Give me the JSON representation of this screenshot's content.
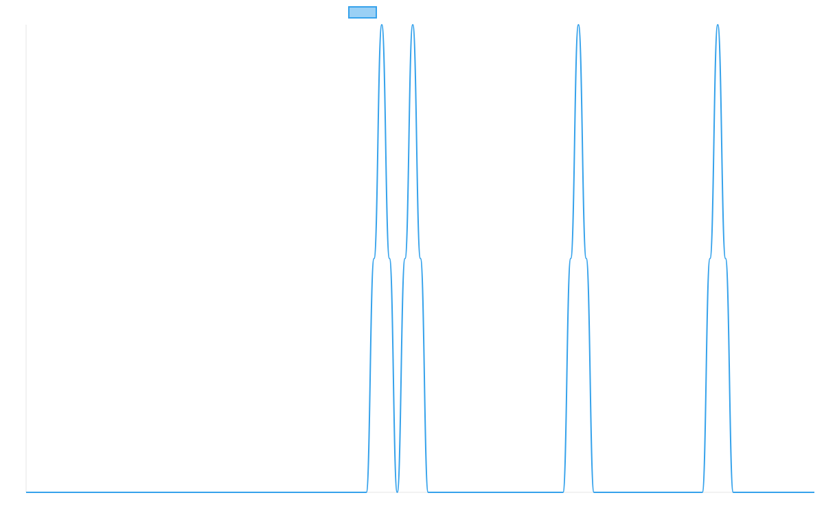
{
  "chart_data": {
    "type": "line",
    "title": "",
    "xlabel": "",
    "ylabel": "",
    "xlim": [
      0,
      1
    ],
    "ylim": [
      0,
      1
    ],
    "grid": false,
    "legend": {
      "placement": "top-center",
      "entries": [
        {
          "label": "",
          "color": "#36a2eb",
          "fill": "#9ad0f5"
        }
      ]
    },
    "series": [
      {
        "color": "#36a2eb",
        "x": [
          0,
          0.4316,
          0.4414,
          0.4512,
          0.461,
          0.4708,
          0.4807,
          0.4905,
          0.5003,
          0.5101,
          0.52,
          0.5298,
          0.5396,
          0.6811,
          0.6909,
          0.7007,
          0.7106,
          0.7204,
          0.8578,
          0.8676,
          0.8774,
          0.8873,
          0.8971,
          1
        ],
        "y": [
          0,
          0,
          0.5,
          1,
          0.5,
          0,
          0.5,
          1,
          0.5,
          0,
          0,
          0,
          0,
          0,
          0.5,
          1,
          0.5,
          0,
          0,
          0.5,
          1,
          0.5,
          0,
          0
        ]
      }
    ]
  }
}
